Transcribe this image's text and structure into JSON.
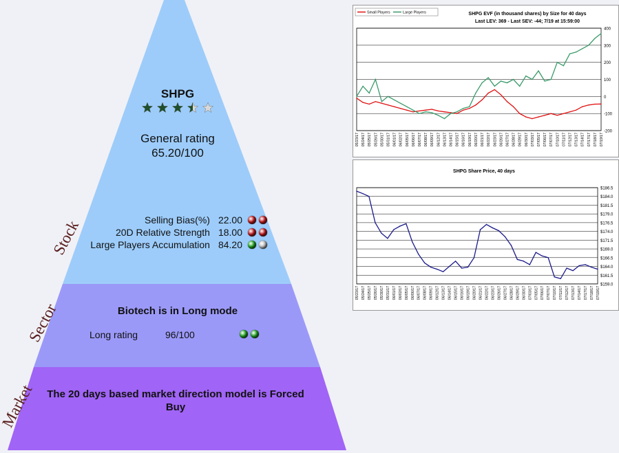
{
  "colors": {
    "stock_fill": "#9dccfa",
    "sector_fill": "#9b99f8",
    "market_fill": "#a064f6",
    "star_fill": "#1f4f2a",
    "star_empty": "#d9d9d9",
    "dot_red": "#c0161b",
    "dot_green": "#1ea61e",
    "dot_gray": "#c8c8c8"
  },
  "pyramid": {
    "stock": {
      "label": "Stock",
      "ticker": "SHPG",
      "stars": 3.5,
      "max_stars": 5,
      "rating_label": "General rating",
      "rating_value": "65.20/100",
      "metrics": [
        {
          "label": "Selling Bias(%)",
          "value": "22.00",
          "dots": [
            "red",
            "red"
          ]
        },
        {
          "label": "20D Relative Strength",
          "value": "18.00",
          "dots": [
            "red",
            "red"
          ]
        },
        {
          "label": "Large Players Accumulation",
          "value": "84.20",
          "dots": [
            "green",
            "gray"
          ]
        }
      ]
    },
    "sector": {
      "label": "Sector",
      "headline": "Biotech is in Long mode",
      "rating_label": "Long rating",
      "rating_value": "96/100",
      "dots": [
        "green",
        "green"
      ]
    },
    "market": {
      "label": "Market",
      "text_line1": "The 20 days based market direction model is Forced",
      "text_line2": "Buy"
    }
  },
  "chart_data": [
    {
      "type": "line",
      "title": "SHPG EVF (in thousand shares) by Size for 40 days",
      "subtitle": "Last LEV: 369 - Last SEV: -44; 7/19 at 15:59:00",
      "legend": [
        "Small Players",
        "Large Players"
      ],
      "legend_position": "top-left",
      "grid": true,
      "ylim": [
        -200,
        400
      ],
      "yticks": [
        "400",
        "300",
        "200",
        "100",
        "0",
        "-100",
        "-200"
      ],
      "x": [
        "05/23/17",
        "05/24/17",
        "05/25/17",
        "05/26/17",
        "05/30/17",
        "05/31/17",
        "06/01/17",
        "06/02/17",
        "06/05/17",
        "06/06/17",
        "06/07/17",
        "06/08/17",
        "06/09/17",
        "06/12/17",
        "06/13/17",
        "06/14/17",
        "06/15/17",
        "06/16/17",
        "06/19/17",
        "06/20/17",
        "06/21/17",
        "06/22/17",
        "06/23/17",
        "06/26/17",
        "06/27/17",
        "06/28/17",
        "06/29/17",
        "06/30/17",
        "07/03/17",
        "07/05/17",
        "07/06/17",
        "07/07/17",
        "07/10/17",
        "07/11/17",
        "07/12/17",
        "07/13/17",
        "07/14/17",
        "07/17/17",
        "07/18/17",
        "07/19/17"
      ],
      "series": [
        {
          "name": "Small Players",
          "color": "#e01010",
          "values": [
            -10,
            -35,
            -45,
            -30,
            -40,
            -50,
            -60,
            -70,
            -80,
            -90,
            -85,
            -80,
            -75,
            -85,
            -90,
            -95,
            -100,
            -80,
            -70,
            -50,
            -20,
            20,
            40,
            10,
            -30,
            -60,
            -100,
            -120,
            -130,
            -120,
            -110,
            -100,
            -110,
            -100,
            -90,
            -80,
            -60,
            -50,
            -45,
            -44
          ]
        },
        {
          "name": "Large Players",
          "color": "#3a9a6a",
          "values": [
            0,
            60,
            20,
            100,
            -30,
            0,
            -20,
            -40,
            -60,
            -80,
            -100,
            -90,
            -95,
            -110,
            -130,
            -100,
            -90,
            -70,
            -60,
            20,
            80,
            110,
            60,
            90,
            80,
            100,
            60,
            120,
            100,
            150,
            90,
            100,
            200,
            180,
            250,
            260,
            280,
            300,
            340,
            369
          ]
        }
      ]
    },
    {
      "type": "line",
      "title": "SHPG Share Price, 40 days",
      "grid": true,
      "ylim": [
        159,
        186.5
      ],
      "yticks": [
        "$186.5",
        "$184.0",
        "$181.5",
        "$179.0",
        "$176.5",
        "$174.0",
        "$171.5",
        "$169.0",
        "$166.5",
        "$164.0",
        "$161.5",
        "$159.0"
      ],
      "x": [
        "05/23/17",
        "05/24/17",
        "05/25/17",
        "05/26/17",
        "05/30/17",
        "05/31/17",
        "06/01/17",
        "06/02/17",
        "06/05/17",
        "06/06/17",
        "06/07/17",
        "06/08/17",
        "06/09/17",
        "06/12/17",
        "06/13/17",
        "06/14/17",
        "06/15/17",
        "06/16/17",
        "06/19/17",
        "06/20/17",
        "06/21/17",
        "06/22/17",
        "06/23/17",
        "06/26/17",
        "06/27/17",
        "06/28/17",
        "06/29/17",
        "06/30/17",
        "07/03/17",
        "07/05/17",
        "07/06/17",
        "07/07/17",
        "07/10/17",
        "07/11/17",
        "07/12/17",
        "07/13/17",
        "07/14/17",
        "07/17/17",
        "07/18/17",
        "07/19/17"
      ],
      "series": [
        {
          "name": "",
          "color": "#1a1a8a",
          "values": [
            185.5,
            184.8,
            184.0,
            176.5,
            173.5,
            172.0,
            174.5,
            175.5,
            176.2,
            171.0,
            167.5,
            165.0,
            163.8,
            163.2,
            162.5,
            164.0,
            165.5,
            163.5,
            163.8,
            166.5,
            174.5,
            176.0,
            175.0,
            174.2,
            172.5,
            170.0,
            166.0,
            165.5,
            164.5,
            168.0,
            167.0,
            166.5,
            161.0,
            160.5,
            163.5,
            162.8,
            164.2,
            164.5,
            163.8,
            163.2
          ]
        }
      ]
    }
  ]
}
